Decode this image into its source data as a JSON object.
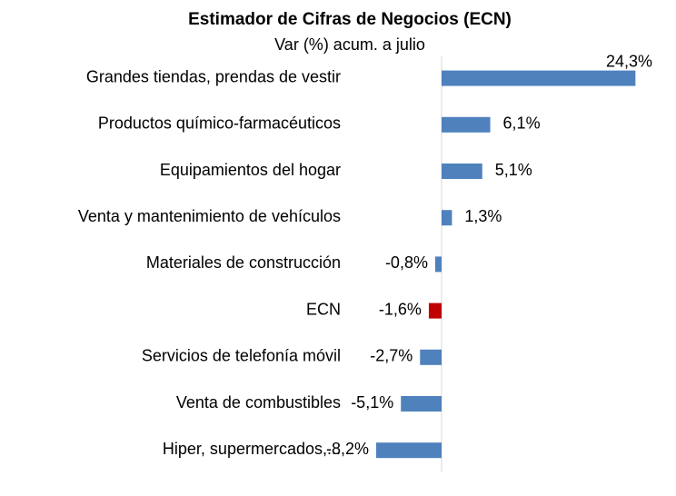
{
  "chart_data": {
    "type": "hbar",
    "title": "Estimador de Cifras de Negocios (ECN)",
    "subtitle": "Var (%) acum. a julio",
    "categories": [
      "Grandes tiendas, prendas de vestir",
      "Productos químico-farmacéuticos",
      "Equipamientos del hogar",
      "Venta y mantenimiento de vehículos",
      "Materiales de construcción",
      "ECN",
      "Servicios de telefonía móvil",
      "Venta de combustibles",
      "Hiper, supermercados,..."
    ],
    "values": [
      24.3,
      6.1,
      5.1,
      1.3,
      -0.8,
      -1.6,
      -2.7,
      -5.1,
      -8.2
    ],
    "value_labels": [
      "24,3%",
      "6,1%",
      "5,1%",
      "1,3%",
      "-0,8%",
      "-1,6%",
      "-2,7%",
      "-5,1%",
      "-8,2%"
    ],
    "colors": [
      "#4f81bd",
      "#4f81bd",
      "#4f81bd",
      "#4f81bd",
      "#4f81bd",
      "#c00000",
      "#4f81bd",
      "#4f81bd",
      "#4f81bd"
    ],
    "xlim": [
      -10,
      25
    ]
  }
}
